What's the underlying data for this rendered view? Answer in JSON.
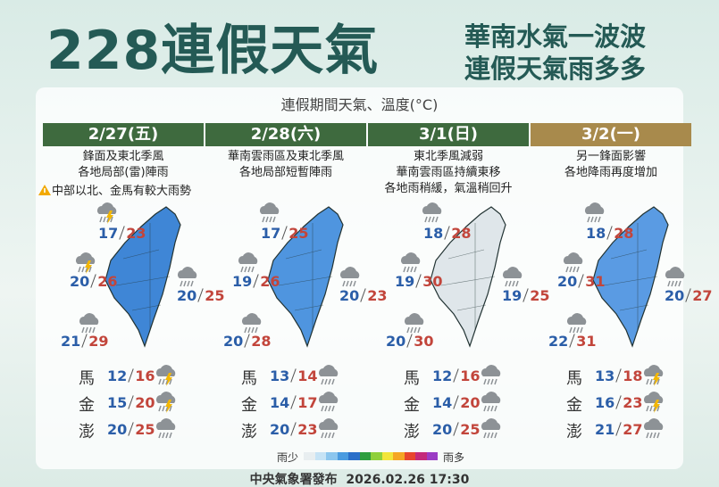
{
  "header": {
    "title": "228連假天氣",
    "subtitle": [
      "華南水氣一波波",
      "連假天氣雨多多"
    ]
  },
  "section_title": "連假期間天氣、溫度(°C)",
  "days": [
    {
      "date": "2/27(五)",
      "header_color": "#3e6a3e",
      "map_color": "#3f86d6",
      "desc": [
        "鋒面及東北季風",
        "各地局部(雷)陣雨"
      ],
      "warning": "中部以北、金馬有較大雨勢",
      "regions": [
        {
          "low": 17,
          "high": 23,
          "icon": "thunder"
        },
        {
          "low": 20,
          "high": 26,
          "icon": "thunder"
        },
        {
          "low": 20,
          "high": 25,
          "icon": "rain"
        },
        {
          "low": 21,
          "high": 29,
          "icon": "rain"
        }
      ],
      "islands": [
        {
          "name": "馬",
          "low": 12,
          "high": 16,
          "icon": "thunder"
        },
        {
          "name": "金",
          "low": 15,
          "high": 20,
          "icon": "thunder"
        },
        {
          "name": "澎",
          "low": 20,
          "high": 25,
          "icon": "rain"
        }
      ]
    },
    {
      "date": "2/28(六)",
      "header_color": "#3e6a3e",
      "map_color": "#4f95df",
      "desc": [
        "華南雲雨區及東北季風",
        "各地局部短暫陣雨"
      ],
      "regions": [
        {
          "low": 17,
          "high": 25,
          "icon": "rain"
        },
        {
          "low": 19,
          "high": 26,
          "icon": "rain"
        },
        {
          "low": 20,
          "high": 23,
          "icon": "rain"
        },
        {
          "low": 20,
          "high": 28,
          "icon": "rain"
        }
      ],
      "islands": [
        {
          "name": "馬",
          "low": 13,
          "high": 14,
          "icon": "rain"
        },
        {
          "name": "金",
          "low": 14,
          "high": 17,
          "icon": "rain"
        },
        {
          "name": "澎",
          "low": 20,
          "high": 23,
          "icon": "rain"
        }
      ]
    },
    {
      "date": "3/1(日)",
      "header_color": "#3e6a3e",
      "map_color": "#dfe6ea",
      "desc": [
        "東北季風減弱",
        "華南雲雨區持續東移",
        "各地雨稍緩，氣溫稍回升"
      ],
      "regions": [
        {
          "low": 18,
          "high": 28,
          "icon": "rain"
        },
        {
          "low": 19,
          "high": 30,
          "icon": "rain"
        },
        {
          "low": 19,
          "high": 25,
          "icon": "rain"
        },
        {
          "low": 20,
          "high": 30,
          "icon": "rain"
        }
      ],
      "islands": [
        {
          "name": "馬",
          "low": 12,
          "high": 16,
          "icon": "rain"
        },
        {
          "name": "金",
          "low": 14,
          "high": 20,
          "icon": "rain"
        },
        {
          "name": "澎",
          "low": 20,
          "high": 25,
          "icon": "rain"
        }
      ]
    },
    {
      "date": "3/2(一)",
      "header_color": "#a88a4c",
      "map_color": "#5a9be3",
      "desc": [
        "另一鋒面影響",
        "各地降雨再度增加"
      ],
      "regions": [
        {
          "low": 18,
          "high": 28,
          "icon": "rain"
        },
        {
          "low": 20,
          "high": 31,
          "icon": "rain"
        },
        {
          "low": 20,
          "high": 27,
          "icon": "rain"
        },
        {
          "low": 22,
          "high": 31,
          "icon": "rain"
        }
      ],
      "islands": [
        {
          "name": "馬",
          "low": 13,
          "high": 18,
          "icon": "thunder"
        },
        {
          "name": "金",
          "low": 16,
          "high": 23,
          "icon": "thunder"
        },
        {
          "name": "澎",
          "low": 21,
          "high": 27,
          "icon": "rain"
        }
      ]
    }
  ],
  "legend": {
    "low": "雨少",
    "high": "雨多",
    "colors": [
      "#e8eef0",
      "#c6e3f5",
      "#8cc6ee",
      "#4a9be0",
      "#2a6fc9",
      "#2d9e3e",
      "#8fd03b",
      "#f2e53a",
      "#f5a623",
      "#e8462d",
      "#c42a7a",
      "#9b3cc4"
    ]
  },
  "footer": {
    "source": "中央氣象署發布",
    "datetime": "2026.02.26 17:30"
  }
}
